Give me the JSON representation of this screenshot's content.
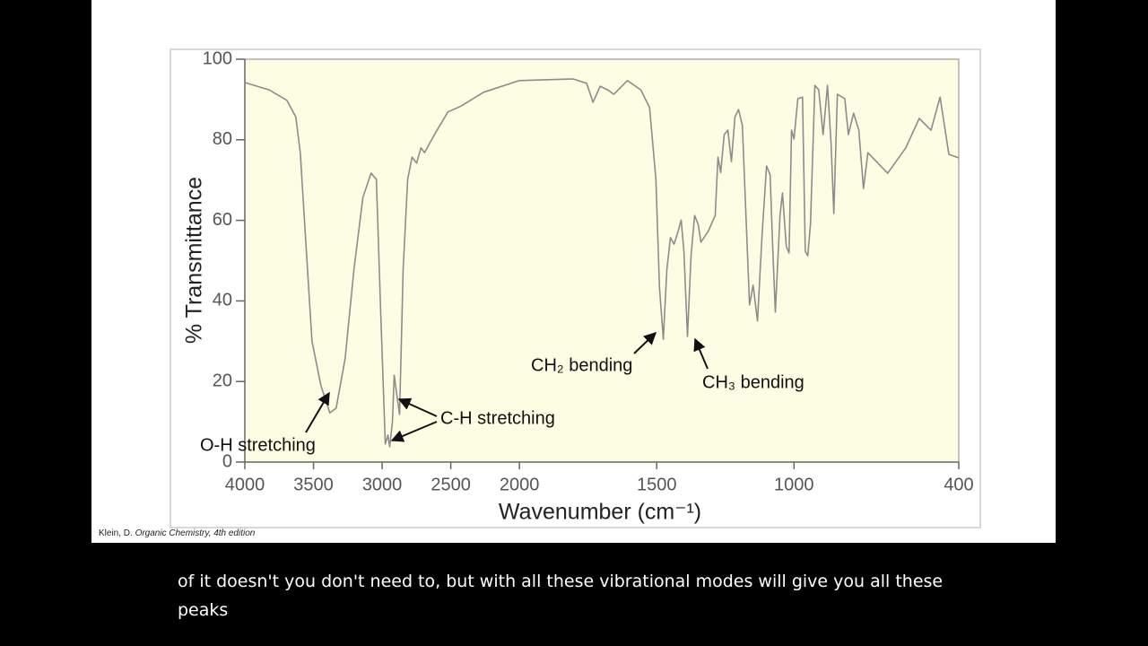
{
  "chart_data": {
    "type": "line",
    "x_label": "Wavenumber (cm⁻¹)",
    "y_label": "% Transmittance",
    "xlim": [
      4000,
      400
    ],
    "xticks": [
      4000,
      3500,
      3000,
      2500,
      2000,
      1500,
      1000,
      400
    ],
    "x_scale": {
      "break": 2000,
      "factor": 2
    },
    "ylim": [
      0,
      100
    ],
    "yticks": [
      0,
      20,
      40,
      60,
      80,
      100
    ],
    "color": "#8c8c8c",
    "x": [
      4000,
      3824,
      3694,
      3629,
      3596,
      3564,
      3511,
      3446,
      3381,
      3335,
      3270,
      3205,
      3140,
      3081,
      3042,
      3010,
      2977,
      2958,
      2945,
      2925,
      2912,
      2893,
      2873,
      2847,
      2814,
      2782,
      2749,
      2717,
      2691,
      2619,
      2521,
      2423,
      2261,
      2000,
      1804,
      1755,
      1732,
      1706,
      1679,
      1656,
      1607,
      1558,
      1526,
      1503,
      1490,
      1476,
      1463,
      1450,
      1437,
      1424,
      1411,
      1401,
      1388,
      1375,
      1362,
      1349,
      1339,
      1313,
      1287,
      1277,
      1267,
      1254,
      1241,
      1228,
      1215,
      1202,
      1188,
      1175,
      1162,
      1149,
      1133,
      1116,
      1100,
      1087,
      1077,
      1068,
      1051,
      1042,
      1028,
      1018,
      1009,
      1000,
      986,
      969,
      959,
      950,
      940,
      924,
      910,
      894,
      878,
      865,
      855,
      842,
      815,
      802,
      783,
      764,
      747,
      731,
      659,
      593,
      544,
      501,
      468,
      436,
      400
    ],
    "values": [
      94.2,
      92.4,
      89.8,
      85.7,
      76.8,
      59,
      30,
      19,
      12.2,
      13.4,
      25.6,
      47.9,
      65.7,
      71.7,
      70.2,
      36.7,
      4.5,
      6.7,
      3.8,
      10,
      21.6,
      16.7,
      11.8,
      47.9,
      70.2,
      75.7,
      74.2,
      78,
      76.8,
      81.3,
      86.9,
      88.4,
      91.8,
      94.7,
      95.1,
      94,
      89.3,
      93.3,
      92.4,
      91.3,
      94.7,
      92.4,
      88,
      70.2,
      43.4,
      30.5,
      47.9,
      55.7,
      54.1,
      56.8,
      60.1,
      52.3,
      31.2,
      51.2,
      61.2,
      59,
      54.6,
      57.2,
      61.2,
      75.7,
      71.9,
      81.3,
      82.4,
      74.6,
      85.7,
      87.5,
      83.5,
      61.2,
      39,
      43.9,
      35,
      56.8,
      73.5,
      71.3,
      52.3,
      37.2,
      61.2,
      66.8,
      53.5,
      51.9,
      82.4,
      80.2,
      90.2,
      90.6,
      52.3,
      51.2,
      59,
      93.5,
      92.4,
      81.3,
      93.5,
      79,
      61.7,
      91.3,
      90.2,
      81.3,
      86.6,
      82.4,
      67.9,
      76.8,
      71.7,
      78,
      85.3,
      82.4,
      90.6,
      76.4,
      75.5
    ],
    "annotations": [
      "O-H stretching",
      "C-H stretching",
      "CH₂ bending",
      "CH₃ bending"
    ]
  },
  "source": {
    "author": "Klein, D.",
    "title": "Organic Chemistry, 4th edition"
  },
  "caption": {
    "lines": [
      "of it doesn't you don't need to, but with all these vibrational modes will give you all these",
      "peaks"
    ]
  }
}
